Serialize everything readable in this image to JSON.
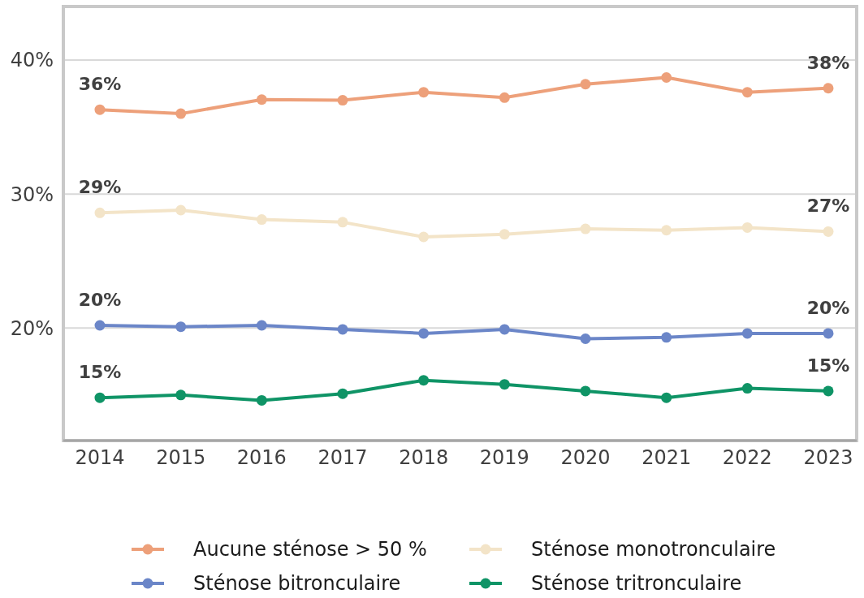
{
  "chart_data": {
    "type": "line",
    "categories": [
      "2014",
      "2015",
      "2016",
      "2017",
      "2018",
      "2019",
      "2020",
      "2021",
      "2022",
      "2023"
    ],
    "series": [
      {
        "name": "Aucune sténose > 50 %",
        "color": "#eda07a",
        "values": [
          36.3,
          36.0,
          37.05,
          37.0,
          37.6,
          37.2,
          38.2,
          38.7,
          37.6,
          37.9
        ]
      },
      {
        "name": "Sténose monotronculaire",
        "color": "#f3e4c8",
        "values": [
          28.6,
          28.8,
          28.1,
          27.9,
          26.8,
          27.0,
          27.4,
          27.3,
          27.5,
          27.2
        ]
      },
      {
        "name": "Sténose bitronculaire",
        "color": "#6b86c8",
        "values": [
          20.2,
          20.1,
          20.2,
          19.9,
          19.6,
          19.9,
          19.2,
          19.3,
          19.6,
          19.6
        ]
      },
      {
        "name": "Sténose tritronculaire",
        "color": "#0f9466",
        "values": [
          14.8,
          15.0,
          14.6,
          15.1,
          16.1,
          15.8,
          15.3,
          14.8,
          15.5,
          15.3
        ]
      }
    ],
    "ylim": [
      11.6,
      44
    ],
    "yticks": [
      {
        "value": 20,
        "label": "20%"
      },
      {
        "value": 30,
        "label": "30%"
      },
      {
        "value": 40,
        "label": "40%"
      }
    ],
    "grid": "y",
    "legend": "bottom",
    "marker": "circle",
    "line_style": "solid",
    "annotations": [
      {
        "text": "36%",
        "x": "2014",
        "y": 36.3
      },
      {
        "text": "38%",
        "x": "2023",
        "y": 37.9
      },
      {
        "text": "29%",
        "x": "2014",
        "y": 28.6
      },
      {
        "text": "27%",
        "x": "2023",
        "y": 27.2
      },
      {
        "text": "20%",
        "x": "2014",
        "y": 20.2
      },
      {
        "text": "20%",
        "x": "2023",
        "y": 19.6
      },
      {
        "text": "15%",
        "x": "2014",
        "y": 14.8
      },
      {
        "text": "15%",
        "x": "2023",
        "y": 15.3
      }
    ]
  }
}
